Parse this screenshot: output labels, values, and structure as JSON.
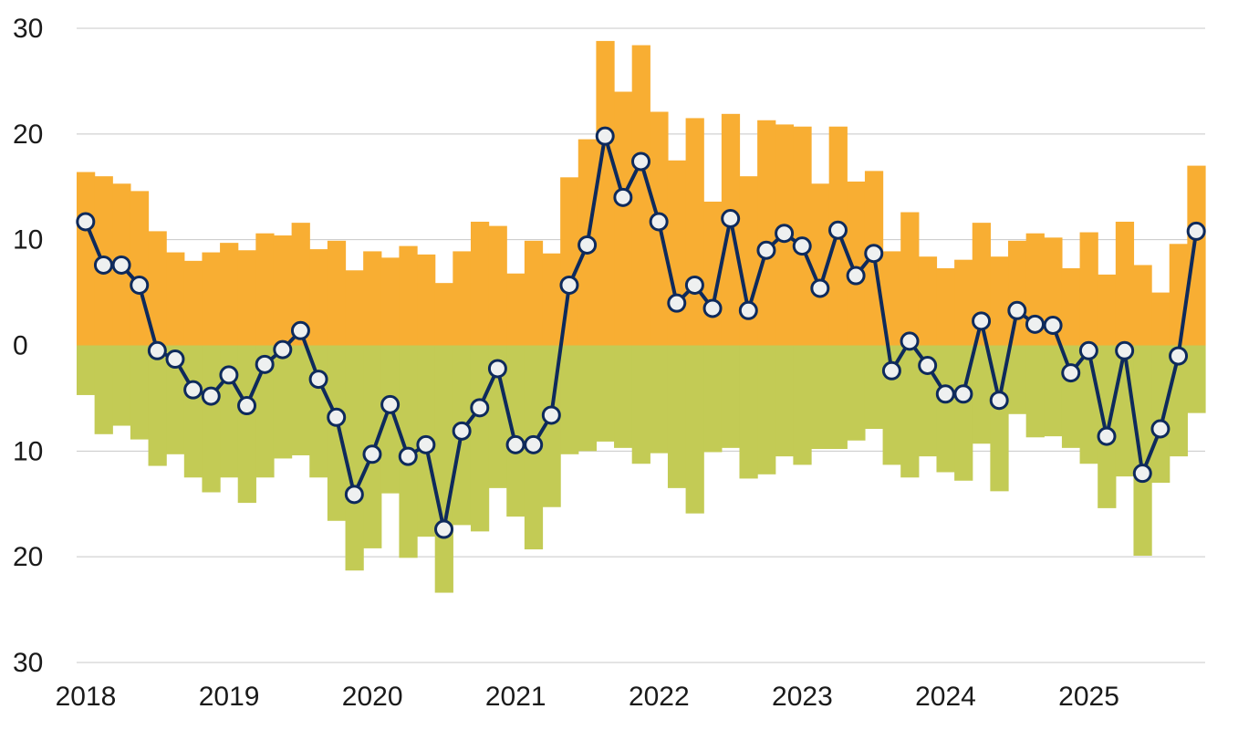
{
  "chart_data": {
    "type": "bar",
    "title": "",
    "xlabel": "",
    "ylabel": "",
    "ylim": [
      -30,
      30
    ],
    "grid": true,
    "y_ticks": [
      {
        "value": 30,
        "label": "30"
      },
      {
        "value": 20,
        "label": "20"
      },
      {
        "value": 10,
        "label": "10"
      },
      {
        "value": 0,
        "label": "0"
      },
      {
        "value": -10,
        "label": "10"
      },
      {
        "value": -20,
        "label": "20"
      },
      {
        "value": -30,
        "label": "30"
      }
    ],
    "x_ticks": [
      {
        "value": 2018.0,
        "label": "2018"
      },
      {
        "value": 2019.0,
        "label": "2019"
      },
      {
        "value": 2020.0,
        "label": "2020"
      },
      {
        "value": 2021.0,
        "label": "2021"
      },
      {
        "value": 2022.0,
        "label": "2022"
      },
      {
        "value": 2023.0,
        "label": "2023"
      },
      {
        "value": 2024.0,
        "label": "2024"
      },
      {
        "value": 2025.0,
        "label": "2025"
      }
    ],
    "x_start": 2018.0,
    "x_end": 2025.875,
    "period": "bimonthly",
    "colors": {
      "positive": "#F8AE33",
      "negative": "#C3CB55",
      "line": "#0E2A5C",
      "marker_fill": "#EEF0F0"
    },
    "series": [
      {
        "type": "bar",
        "values": [
          16.4,
          16.0,
          15.3,
          14.6,
          10.8,
          8.8,
          8.0,
          8.8,
          9.7,
          9.0,
          10.6,
          10.4,
          11.6,
          9.1,
          9.9,
          7.1,
          8.9,
          8.3,
          9.4,
          8.6,
          5.9,
          8.9,
          11.7,
          11.3,
          6.8,
          9.9,
          8.7,
          15.9,
          19.5,
          28.8,
          24.0,
          28.4,
          22.1,
          17.5,
          21.5,
          13.6,
          21.9,
          16.0,
          21.3,
          20.9,
          20.7,
          15.3,
          20.7,
          15.5,
          16.5,
          8.9,
          12.6,
          8.4,
          7.3,
          8.1,
          11.6,
          8.4,
          9.9,
          10.6,
          10.2,
          7.3,
          10.7,
          6.7,
          11.7,
          7.6,
          5.0,
          9.6,
          17.0
        ]
      },
      {
        "type": "bar",
        "values": [
          -4.7,
          -8.4,
          -7.6,
          -8.9,
          -11.4,
          -10.3,
          -12.5,
          -13.9,
          -12.5,
          -14.9,
          -12.5,
          -10.7,
          -10.4,
          -12.5,
          -16.6,
          -21.3,
          -19.2,
          -14.0,
          -20.1,
          -18.1,
          -23.4,
          -17.0,
          -17.6,
          -13.5,
          -16.2,
          -19.3,
          -15.3,
          -10.3,
          -10.0,
          -9.1,
          -9.7,
          -11.2,
          -10.2,
          -13.5,
          -15.9,
          -10.1,
          -9.7,
          -12.6,
          -12.2,
          -10.5,
          -11.3,
          -9.8,
          -9.8,
          -9.0,
          -7.9,
          -11.3,
          -12.5,
          -10.5,
          -12.0,
          -12.8,
          -9.3,
          -13.8,
          -6.5,
          -8.7,
          -8.6,
          -9.7,
          -11.2,
          -15.4,
          -12.4,
          -19.9,
          -13.0,
          -10.5,
          -6.4
        ]
      },
      {
        "type": "line",
        "values": [
          11.7,
          7.6,
          7.6,
          5.7,
          -0.5,
          -1.3,
          -4.2,
          -4.8,
          -2.8,
          -5.7,
          -1.8,
          -0.4,
          1.4,
          -3.2,
          -6.8,
          -14.1,
          -10.3,
          -5.6,
          -10.5,
          -9.4,
          -17.4,
          -8.1,
          -5.9,
          -2.2,
          -9.4,
          -9.4,
          -6.6,
          5.7,
          9.5,
          19.8,
          14.0,
          17.4,
          11.7,
          4.0,
          5.7,
          3.5,
          12.0,
          3.3,
          9.0,
          10.6,
          9.4,
          5.4,
          10.9,
          6.6,
          8.7,
          -2.4,
          0.4,
          -1.9,
          -4.6,
          -4.6,
          2.3,
          -5.2,
          3.3,
          2.0,
          1.9,
          -2.6,
          -0.5,
          -8.6,
          -0.5,
          -12.1,
          -7.9,
          -1.0,
          10.8
        ]
      }
    ]
  }
}
